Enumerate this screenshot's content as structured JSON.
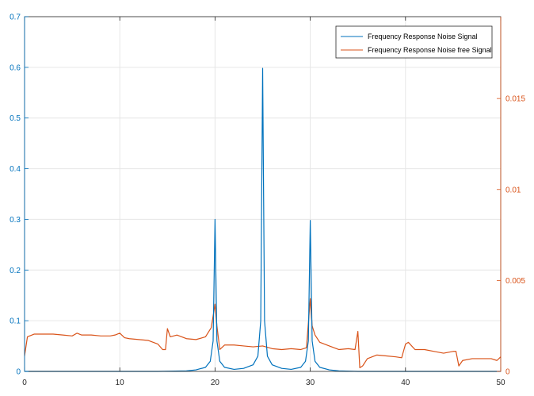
{
  "chart_data": {
    "type": "line",
    "title": "",
    "xlabel": "",
    "ylabel": "",
    "xlim": [
      0,
      50
    ],
    "ylim_left": [
      0,
      0.7
    ],
    "ylim_right": [
      0,
      0.0195
    ],
    "grid": true,
    "legend_position": "top-right",
    "x_ticks": [
      "0",
      "10",
      "20",
      "30",
      "40",
      "50"
    ],
    "y_ticks_left": [
      "0",
      "0.1",
      "0.2",
      "0.3",
      "0.4",
      "0.5",
      "0.6",
      "0.7"
    ],
    "y_ticks_right": [
      "0",
      "0.005",
      "0.01",
      "0.015"
    ],
    "colors": {
      "series1": "#0072BD",
      "series2": "#D95319",
      "grid": "#e6e6e6",
      "axis": "#262626"
    },
    "series": [
      {
        "name": "Frequency Response Noise Signal",
        "axis": "left",
        "color": "#0072BD",
        "x": [
          0,
          14,
          17,
          18,
          19,
          19.5,
          19.8,
          20,
          20.2,
          20.5,
          21,
          22,
          23,
          24,
          24.5,
          24.8,
          25,
          25.2,
          25.5,
          26,
          27,
          28,
          29,
          29.5,
          29.8,
          30,
          30.2,
          30.5,
          31,
          32,
          33,
          35,
          50
        ],
        "y": [
          0,
          0,
          0.001,
          0.003,
          0.008,
          0.02,
          0.06,
          0.3,
          0.06,
          0.02,
          0.008,
          0.004,
          0.006,
          0.013,
          0.03,
          0.1,
          0.598,
          0.1,
          0.03,
          0.013,
          0.006,
          0.004,
          0.008,
          0.02,
          0.06,
          0.298,
          0.06,
          0.02,
          0.008,
          0.003,
          0.001,
          0,
          0
        ]
      },
      {
        "name": "Frequency Response Noise free Signal",
        "axis": "right",
        "color": "#D95319",
        "x": [
          0,
          0.3,
          1,
          2,
          3,
          4,
          5,
          5.5,
          6,
          7,
          8,
          9,
          9.5,
          10,
          10.5,
          11,
          12,
          13,
          14,
          14.5,
          14.8,
          15,
          15.3,
          16,
          17,
          18,
          19,
          19.6,
          20,
          20.2,
          20.5,
          21,
          22,
          23,
          24,
          25,
          26,
          27,
          28,
          29,
          29.6,
          30,
          30.2,
          30.5,
          31,
          32,
          33,
          34,
          34.7,
          35,
          35.2,
          35.5,
          36,
          37,
          38,
          39,
          39.6,
          40,
          40.3,
          41,
          42,
          43,
          44,
          45,
          45.3,
          45.6,
          46,
          47,
          48,
          49,
          49.6,
          50
        ],
        "y": [
          0.00085,
          0.0019,
          0.00205,
          0.00205,
          0.00205,
          0.002,
          0.00195,
          0.0021,
          0.002,
          0.002,
          0.00195,
          0.00195,
          0.002,
          0.0021,
          0.00185,
          0.0018,
          0.00175,
          0.0017,
          0.0015,
          0.0012,
          0.0012,
          0.00235,
          0.0019,
          0.002,
          0.0018,
          0.00175,
          0.0019,
          0.0024,
          0.0037,
          0.0025,
          0.0012,
          0.00145,
          0.00145,
          0.0014,
          0.00135,
          0.0014,
          0.00125,
          0.0012,
          0.00125,
          0.0012,
          0.0013,
          0.004,
          0.0025,
          0.002,
          0.0016,
          0.0014,
          0.0012,
          0.00125,
          0.0012,
          0.0022,
          0.0002,
          0.0003,
          0.0007,
          0.0009,
          0.00085,
          0.0008,
          0.00075,
          0.0015,
          0.0016,
          0.0012,
          0.0012,
          0.0011,
          0.001,
          0.0011,
          0.0011,
          0.0003,
          0.0006,
          0.0007,
          0.0007,
          0.0007,
          0.0006,
          0.0008
        ]
      }
    ]
  }
}
